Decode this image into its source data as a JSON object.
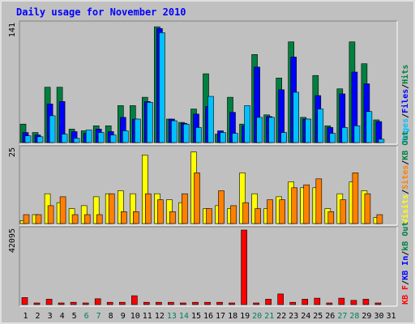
{
  "chart_data": {
    "type": "bar",
    "title": "Daily usage for November 2010",
    "days": [
      1,
      2,
      3,
      4,
      5,
      6,
      7,
      8,
      9,
      10,
      11,
      12,
      13,
      14,
      15,
      16,
      17,
      18,
      19,
      20,
      21,
      22,
      23,
      24,
      25,
      26,
      27,
      28,
      29,
      30,
      31
    ],
    "weekend_days": [
      6,
      7,
      13,
      14,
      20,
      21,
      27,
      28
    ],
    "panels": [
      {
        "max_label": "141",
        "max": 141,
        "legend": [
          "Pages",
          "/",
          "Files",
          "/",
          "Hits"
        ],
        "legend_colors": [
          "#00c0ff",
          "#000000",
          "#0000ff",
          "#000000",
          "#008040"
        ],
        "series": [
          {
            "name": "Hits",
            "color": "#008040",
            "values": [
              22,
              12,
              66,
              66,
              16,
              14,
              20,
              20,
              44,
              44,
              54,
              138,
              28,
              24,
              40,
              82,
              10,
              54,
              22,
              105,
              33,
              77,
              120,
              30,
              80,
              20,
              64,
              120,
              94,
              27,
              0
            ]
          },
          {
            "name": "Files",
            "color": "#0000ff",
            "values": [
              12,
              9,
              46,
              49,
              13,
              11,
              16,
              13,
              30,
              28,
              49,
              136,
              28,
              23,
              34,
              43,
              14,
              36,
              20,
              90,
              31,
              63,
              102,
              28,
              56,
              18,
              58,
              84,
              70,
              25,
              0
            ]
          },
          {
            "name": "Pages",
            "color": "#00c0ff",
            "values": [
              8,
              7,
              32,
              10,
              5,
              15,
              12,
              9,
              14,
              28,
              48,
              131,
              26,
              22,
              18,
              55,
              12,
              11,
              44,
              30,
              30,
              12,
              60,
              28,
              40,
              11,
              18,
              20,
              37,
              4,
              0
            ]
          }
        ]
      },
      {
        "max_label": "25",
        "max": 25,
        "legend": [
          "Visits",
          "/",
          "Sites",
          "/",
          "KB Out"
        ],
        "legend_colors": [
          "#ffff00",
          "#000000",
          "#ff8000",
          "#000000",
          "#008040"
        ],
        "series": [
          {
            "name": "Visits",
            "color": "#ffff00",
            "values": [
              1,
              3,
              10,
              7,
              5,
              6,
              9,
              10,
              11,
              10,
              23,
              10,
              8,
              7,
              24,
              5,
              6,
              5,
              17,
              10,
              5,
              9,
              14,
              12,
              12,
              5,
              10,
              14,
              11,
              2,
              0
            ]
          },
          {
            "name": "Sites",
            "color": "#ff8000",
            "values": [
              3,
              3,
              6,
              9,
              3,
              3,
              3,
              10,
              4,
              4,
              10,
              8,
              4,
              10,
              17,
              5,
              11,
              6,
              7,
              5,
              8,
              8,
              12,
              13,
              15,
              4,
              8,
              17,
              10,
              3,
              0
            ]
          }
        ]
      },
      {
        "max_label": "42095",
        "max": 42095,
        "legend": [
          "KB F",
          "/",
          "KB In",
          "/",
          "kB Out"
        ],
        "legend_colors": [
          "#ff0000",
          "#000000",
          "#0000ff",
          "#000000",
          "#008040"
        ],
        "series": [
          {
            "name": "KB F",
            "color": "#ff0000",
            "values": [
              4000,
              900,
              3000,
              900,
              1300,
              900,
              3300,
              1300,
              1300,
              5000,
              1300,
              1300,
              1300,
              900,
              1300,
              1300,
              1300,
              900,
              42095,
              900,
              3000,
              6000,
              1300,
              3000,
              3600,
              900,
              3600,
              2400,
              3000,
              900,
              0
            ]
          }
        ]
      }
    ]
  }
}
